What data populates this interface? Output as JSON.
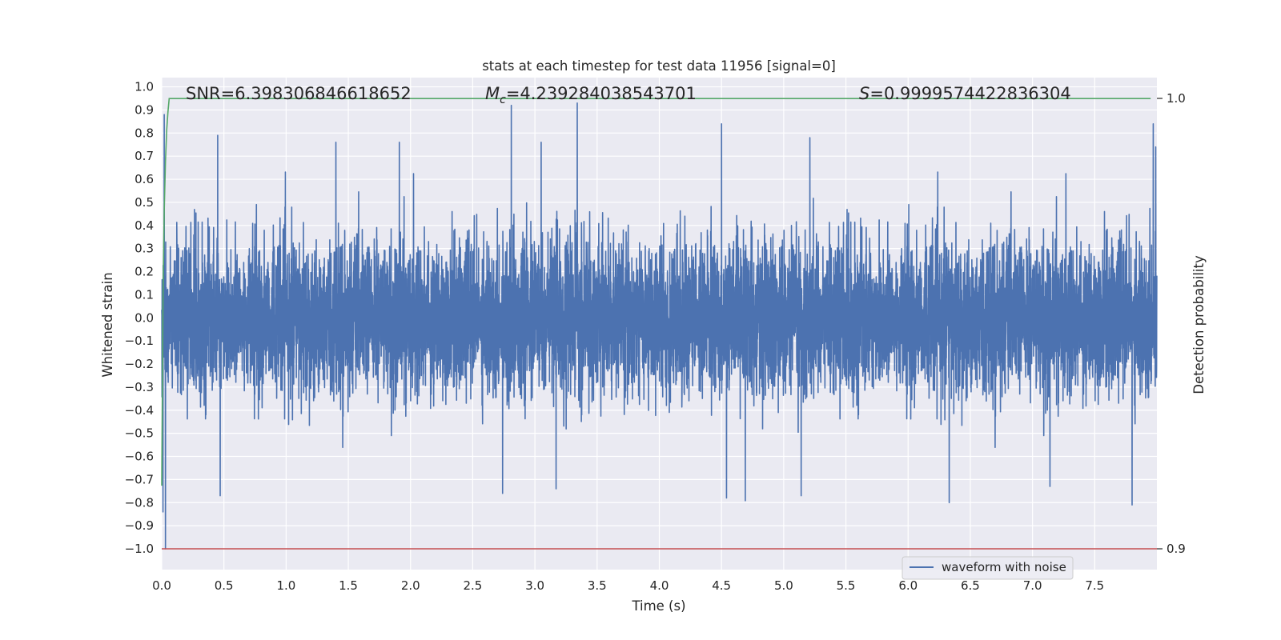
{
  "chart_data": {
    "type": "line",
    "title": "stats at each timestep for test data 11956 [signal=0]",
    "xlabel": "Time (s)",
    "ylabel": "Whitened strain",
    "y2label": "Detection probability",
    "xlim": [
      0.0,
      8.0
    ],
    "ylim": [
      -1.09,
      1.04
    ],
    "y2lim": [
      0.9,
      1.0
    ],
    "x_ticks": [
      0.0,
      0.5,
      1.0,
      1.5,
      2.0,
      2.5,
      3.0,
      3.5,
      4.0,
      4.5,
      5.0,
      5.5,
      6.0,
      6.5,
      7.0,
      7.5
    ],
    "x_tick_labels": [
      "0.0",
      "0.5",
      "1.0",
      "1.5",
      "2.0",
      "2.5",
      "3.0",
      "3.5",
      "4.0",
      "4.5",
      "5.0",
      "5.5",
      "6.0",
      "6.5",
      "7.0",
      "7.5"
    ],
    "y_ticks": [
      -1.0,
      -0.9,
      -0.8,
      -0.7,
      -0.6,
      -0.5,
      -0.4,
      -0.3,
      -0.2,
      -0.1,
      0.0,
      0.1,
      0.2,
      0.3,
      0.4,
      0.5,
      0.6,
      0.7,
      0.8,
      0.9,
      1.0
    ],
    "y_tick_labels": [
      "−1.0",
      "−0.9",
      "−0.8",
      "−0.7",
      "−0.6",
      "−0.5",
      "−0.4",
      "−0.3",
      "−0.2",
      "−0.1",
      "0.0",
      "0.1",
      "0.2",
      "0.3",
      "0.4",
      "0.5",
      "0.6",
      "0.7",
      "0.8",
      "0.9",
      "1.0"
    ],
    "y2_ticks": [
      0.9,
      1.0
    ],
    "y2_tick_labels": [
      "0.9",
      "1.0"
    ],
    "grid": true,
    "legend": {
      "position": "lower-right",
      "entries": [
        "waveform with noise"
      ]
    },
    "annotations": {
      "snr": "SNR=6.398306846618652",
      "mc_symbol": "M",
      "mc_sub": "c",
      "mc_value": "=4.239284038543701",
      "s_symbol": "S",
      "s_value": "=0.9999574422836304"
    },
    "series": [
      {
        "name": "waveform with noise",
        "axis": "left",
        "color": "#4c72b0",
        "x_start": 0.0,
        "x_end": 7.9995,
        "notable_points": [
          {
            "x": 0.01,
            "y": -0.84
          },
          {
            "x": 0.02,
            "y": 0.88
          },
          {
            "x": 0.03,
            "y": -1.0
          },
          {
            "x": 0.45,
            "y": 0.79
          },
          {
            "x": 0.47,
            "y": -0.77
          },
          {
            "x": 1.4,
            "y": 0.76
          },
          {
            "x": 1.91,
            "y": 0.76
          },
          {
            "x": 2.81,
            "y": 0.92
          },
          {
            "x": 2.74,
            "y": -0.76
          },
          {
            "x": 3.05,
            "y": 0.76
          },
          {
            "x": 3.34,
            "y": 0.94
          },
          {
            "x": 3.17,
            "y": -0.74
          },
          {
            "x": 4.5,
            "y": 0.84
          },
          {
            "x": 4.54,
            "y": -0.78
          },
          {
            "x": 5.21,
            "y": 0.78
          },
          {
            "x": 5.14,
            "y": -0.77
          },
          {
            "x": 6.33,
            "y": -0.8
          },
          {
            "x": 7.14,
            "y": -0.73
          },
          {
            "x": 7.8,
            "y": -0.81
          },
          {
            "x": 7.97,
            "y": 0.84
          },
          {
            "x": 7.99,
            "y": 0.74
          }
        ]
      },
      {
        "name": "",
        "axis": "right",
        "color": "#55a868",
        "x": [
          0.0,
          0.01,
          0.02,
          0.03,
          0.04,
          0.05,
          0.06,
          7.95
        ],
        "y": [
          0.914,
          0.955,
          0.975,
          0.986,
          0.993,
          0.997,
          0.99997,
          0.99997
        ]
      },
      {
        "name": "",
        "axis": "right",
        "color": "#c44e52",
        "x": [
          0.0,
          8.0
        ],
        "y": [
          0.9,
          0.9
        ]
      }
    ]
  }
}
